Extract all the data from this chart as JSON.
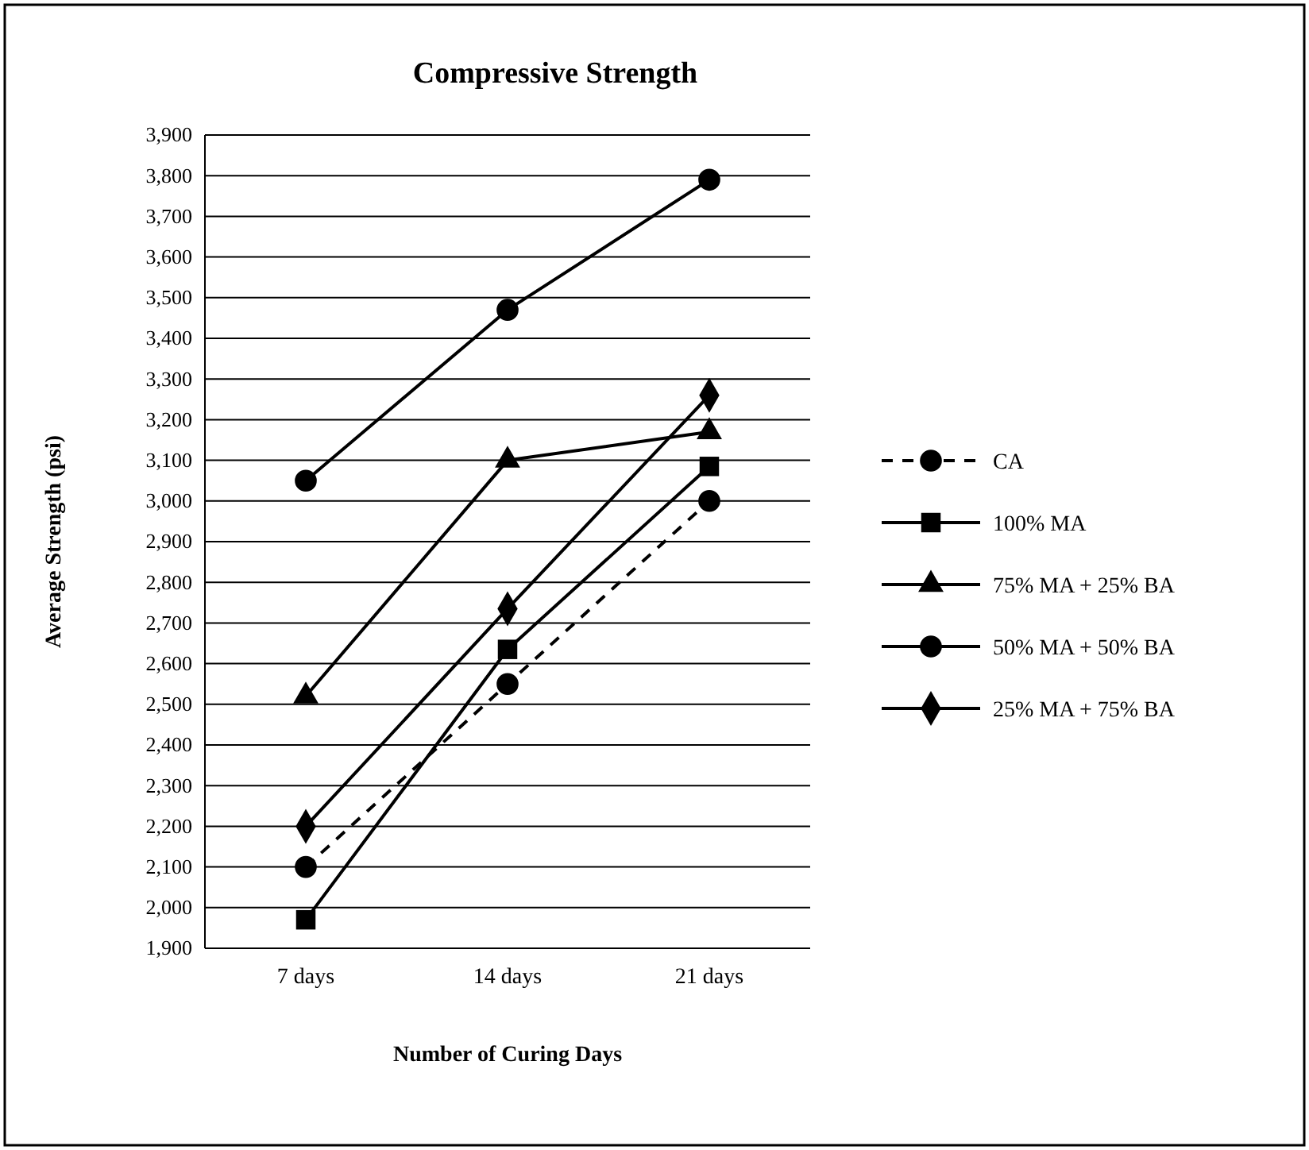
{
  "chart_data": {
    "type": "line",
    "title": "Compressive Strength",
    "xlabel": "Number of Curing Days",
    "ylabel": "Average Strength (psi)",
    "categories": [
      "7 days",
      "14 days",
      "21 days"
    ],
    "ylim": [
      1900,
      3900
    ],
    "yticks": [
      {
        "value": 1900,
        "label": "1,900"
      },
      {
        "value": 2000,
        "label": "2,000"
      },
      {
        "value": 2100,
        "label": "2,100"
      },
      {
        "value": 2200,
        "label": "2,200"
      },
      {
        "value": 2300,
        "label": "2,300"
      },
      {
        "value": 2400,
        "label": "2,400"
      },
      {
        "value": 2500,
        "label": "2,500"
      },
      {
        "value": 2600,
        "label": "2,600"
      },
      {
        "value": 2700,
        "label": "2,700"
      },
      {
        "value": 2800,
        "label": "2,800"
      },
      {
        "value": 2900,
        "label": "2,900"
      },
      {
        "value": 3000,
        "label": "3,000"
      },
      {
        "value": 3100,
        "label": "3,100"
      },
      {
        "value": 3200,
        "label": "3,200"
      },
      {
        "value": 3300,
        "label": "3,300"
      },
      {
        "value": 3400,
        "label": "3,400"
      },
      {
        "value": 3500,
        "label": "3,500"
      },
      {
        "value": 3600,
        "label": "3,600"
      },
      {
        "value": 3700,
        "label": "3,700"
      },
      {
        "value": 3800,
        "label": "3,800"
      },
      {
        "value": 3900,
        "label": "3,900"
      }
    ],
    "grid": "y",
    "legend": "right",
    "series": [
      {
        "name": "CA",
        "color": "#000000",
        "marker": "circle",
        "line_style": "dashed",
        "values": [
          2100,
          2550,
          3000
        ]
      },
      {
        "name": "100% MA",
        "color": "#000000",
        "marker": "square",
        "line_style": "solid",
        "values": [
          1970,
          2635,
          3085
        ]
      },
      {
        "name": "75% MA + 25% BA",
        "color": "#000000",
        "marker": "triangle",
        "line_style": "solid",
        "values": [
          2520,
          3100,
          3170
        ]
      },
      {
        "name": "50% MA + 50% BA",
        "color": "#000000",
        "marker": "circle",
        "line_style": "solid",
        "values": [
          3050,
          3470,
          3790
        ]
      },
      {
        "name": "25% MA + 75% BA",
        "color": "#000000",
        "marker": "diamond",
        "line_style": "solid",
        "values": [
          2200,
          2735,
          3260
        ]
      }
    ]
  }
}
